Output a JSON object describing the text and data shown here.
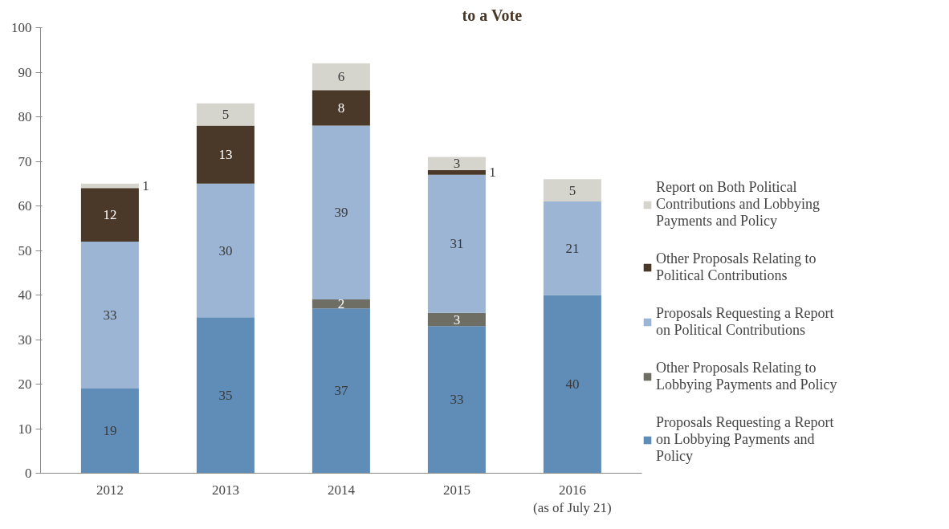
{
  "chart_data": {
    "type": "bar",
    "title": "to a Vote",
    "stacked": true,
    "categories": [
      "2012",
      "2013",
      "2014",
      "2015",
      "2016\n(as of July 21)"
    ],
    "series": [
      {
        "name": "Proposals Requesting a Report on Lobbying Payments and Policy",
        "color": "#5f8db8",
        "values": [
          19,
          35,
          37,
          33,
          40
        ]
      },
      {
        "name": "Other Proposals Relating to Lobbying Payments and Policy",
        "color": "#6f6e64",
        "values": [
          null,
          null,
          2,
          3,
          null
        ]
      },
      {
        "name": "Proposals Requesting a Report on Political Contributions",
        "color": "#9cb5d5",
        "values": [
          33,
          30,
          39,
          31,
          21
        ]
      },
      {
        "name": "Other Proposals Relating to Political Contributions",
        "color": "#4a3828",
        "values": [
          12,
          13,
          8,
          1,
          null
        ]
      },
      {
        "name": "Report on Both Political Contributions and Lobbying Payments and Policy",
        "color": "#d5d5cd",
        "values": [
          1,
          5,
          6,
          3,
          5
        ]
      }
    ],
    "ylim": [
      0,
      100
    ],
    "yticks": [
      0,
      10,
      20,
      30,
      40,
      50,
      60,
      70,
      80,
      90,
      100
    ],
    "grid": false,
    "legend": "right",
    "data_labels": true
  }
}
